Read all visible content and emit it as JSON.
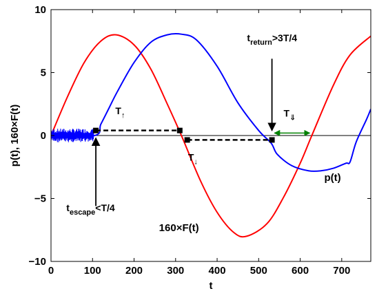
{
  "chart_data": {
    "type": "line",
    "title": "",
    "xlabel": "t",
    "ylabel": "p(t), 160×F(t)",
    "xlim": [
      0,
      770
    ],
    "ylim": [
      -10,
      10
    ],
    "xticks": [
      0,
      100,
      200,
      300,
      400,
      500,
      600,
      700
    ],
    "xtick_labels": [
      "0",
      "100",
      "200",
      "300",
      "400",
      "500",
      "600",
      "700"
    ],
    "yticks": [
      -10,
      -5,
      0,
      5,
      10
    ],
    "ytick_labels": [
      "−10",
      "−5",
      "0",
      "5",
      "10"
    ],
    "grid": false,
    "colors": {
      "field": "#ff0000",
      "momentum": "#0000ff",
      "arrow_green": "#008000",
      "markers": "#000000"
    },
    "series": [
      {
        "name": "160×F(t)",
        "color": "#ff0000",
        "x": [
          0,
          40,
          80,
          120,
          157,
          200,
          240,
          280,
          314,
          360,
          400,
          440,
          471,
          520,
          560,
          600,
          628,
          680,
          720,
          770
        ],
        "y": [
          0,
          3.1,
          5.8,
          7.5,
          8.0,
          7.2,
          5.3,
          2.5,
          0,
          -3.6,
          -6.1,
          -7.7,
          -8.0,
          -7.0,
          -4.9,
          -2.2,
          0,
          4.0,
          6.4,
          7.9
        ]
      },
      {
        "name": "p(t)",
        "color": "#0000ff",
        "x": [
          0,
          105,
          120,
          140,
          160,
          200,
          240,
          280,
          314,
          350,
          400,
          450,
          500,
          530,
          545,
          580,
          620,
          650,
          680,
          710,
          720,
          735,
          760,
          770
        ],
        "y": [
          0,
          0,
          0.9,
          2.2,
          3.5,
          5.8,
          7.4,
          8.0,
          8.05,
          7.6,
          5.5,
          2.6,
          0.4,
          -0.6,
          -1.5,
          -2.4,
          -2.8,
          -2.8,
          -2.6,
          -2.2,
          -2.1,
          -0.5,
          1.3,
          2.1
        ]
      }
    ],
    "noise_region": {
      "x_start": 0,
      "x_end": 103,
      "amplitude": 0.55
    },
    "markers": [
      {
        "x": 108,
        "y": 0.4
      },
      {
        "x": 310,
        "y": 0.4
      },
      {
        "x": 328,
        "y": -0.35
      },
      {
        "x": 532,
        "y": -0.35
      }
    ],
    "annotations": {
      "t_up": {
        "main": "T",
        "sub": "↑"
      },
      "t_down": {
        "main": "T",
        "sub": "↓"
      },
      "t_dbl": {
        "main": "T",
        "sub": "⇓"
      },
      "escape": {
        "main": "t",
        "sub": "escape",
        "tail": "<T/4"
      },
      "return": {
        "main": "t",
        "sub": "return",
        "tail": ">3T/4"
      },
      "field_label": "160×F(t)",
      "momentum_label": "p(t)"
    }
  }
}
